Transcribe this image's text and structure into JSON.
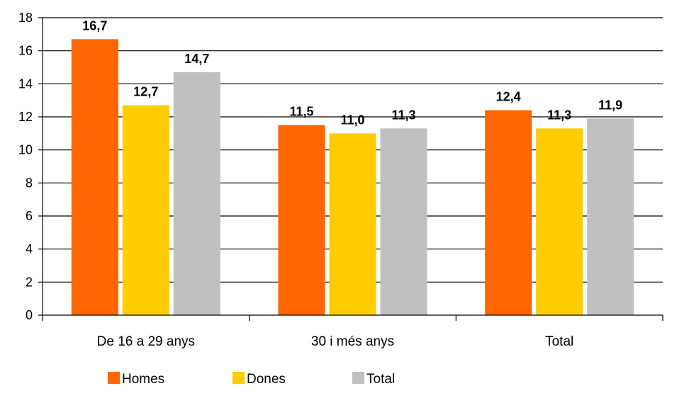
{
  "chart_data": {
    "type": "bar",
    "categories": [
      "De 16 a 29 anys",
      "30 i més anys",
      "Total"
    ],
    "series": [
      {
        "name": "Homes",
        "color": "#FF6600",
        "values": [
          16.7,
          11.5,
          12.4
        ],
        "labels": [
          "16,7",
          "11,5",
          "12,4"
        ]
      },
      {
        "name": "Dones",
        "color": "#FFCC00",
        "values": [
          12.7,
          11.0,
          11.3
        ],
        "labels": [
          "12,7",
          "11,0",
          "11,3"
        ]
      },
      {
        "name": "Total",
        "color": "#C0C0C0",
        "values": [
          14.7,
          11.3,
          11.9
        ],
        "labels": [
          "14,7",
          "11,3",
          "11,9"
        ]
      }
    ],
    "ylim": [
      0,
      18
    ],
    "yticks": [
      0,
      2,
      4,
      6,
      8,
      10,
      12,
      14,
      16,
      18
    ],
    "grid": true,
    "legend_position": "bottom"
  }
}
